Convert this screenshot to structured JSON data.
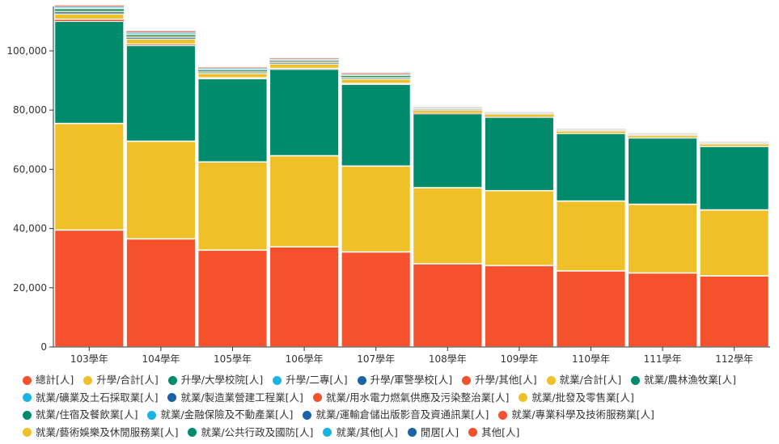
{
  "chart_data": {
    "type": "bar",
    "stacked": true,
    "categories": [
      "103學年",
      "104學年",
      "105學年",
      "106學年",
      "107學年",
      "108學年",
      "109學年",
      "110學年",
      "111學年",
      "112學年"
    ],
    "ylim": [
      0,
      115000
    ],
    "yticks": [
      "0",
      "20,000",
      "40,000",
      "60,000",
      "80,000",
      "100,000"
    ],
    "ytick_values": [
      0,
      20000,
      40000,
      60000,
      80000,
      100000
    ],
    "grid": false,
    "legend_position": "bottom",
    "series": [
      {
        "name": "總計[人]",
        "color": "#f4512c",
        "values": [
          39500,
          36500,
          32700,
          33800,
          32100,
          28100,
          27500,
          25700,
          25000,
          24000
        ]
      },
      {
        "name": "升學/合計[人]",
        "color": "#efc028",
        "values": [
          36000,
          33000,
          29800,
          30800,
          29000,
          25700,
          25300,
          23600,
          23200,
          22300
        ]
      },
      {
        "name": "升學/大學校院[人]",
        "color": "#008c6c",
        "values": [
          34500,
          32300,
          28100,
          29200,
          27600,
          25000,
          24800,
          22800,
          22400,
          21400
        ]
      },
      {
        "name": "升學/二專[人]",
        "color": "#1bb3e3",
        "values": [
          0,
          0,
          0,
          0,
          0,
          0,
          0,
          0,
          0,
          0
        ]
      },
      {
        "name": "升學/軍警學校[人]",
        "color": "#1b63a8",
        "values": [
          0,
          0,
          0,
          0,
          0,
          0,
          0,
          0,
          0,
          0
        ]
      },
      {
        "name": "升學/其他[人]",
        "color": "#f4512c",
        "values": [
          700,
          500,
          300,
          300,
          300,
          200,
          150,
          100,
          100,
          100
        ]
      },
      {
        "name": "就業/合計[人]",
        "color": "#efc028",
        "values": [
          1800,
          1700,
          1500,
          1500,
          1500,
          800,
          800,
          650,
          600,
          650
        ]
      },
      {
        "name": "就業/農林漁牧業[人]",
        "color": "#008c6c",
        "values": [
          100,
          100,
          100,
          100,
          100,
          50,
          50,
          50,
          50,
          50
        ]
      },
      {
        "name": "就業/礦業及土石採取業[人]",
        "color": "#1bb3e3",
        "values": [
          0,
          0,
          0,
          0,
          0,
          0,
          0,
          0,
          0,
          0
        ]
      },
      {
        "name": "就業/製造業營建工程業[人]",
        "color": "#1b63a8",
        "values": [
          500,
          400,
          300,
          300,
          300,
          150,
          100,
          100,
          100,
          100
        ]
      },
      {
        "name": "就業/用水電力燃氣供應及污染整治業[人]",
        "color": "#f4512c",
        "values": [
          100,
          100,
          50,
          50,
          50,
          50,
          50,
          50,
          50,
          50
        ]
      },
      {
        "name": "就業/批發及零售業[人]",
        "color": "#efc028",
        "values": [
          300,
          300,
          250,
          250,
          250,
          150,
          100,
          100,
          100,
          100
        ]
      },
      {
        "name": "就業/住宿及餐飲業[人]",
        "color": "#008c6c",
        "values": [
          600,
          500,
          400,
          400,
          400,
          200,
          150,
          150,
          100,
          100
        ]
      },
      {
        "name": "就業/金融保險及不動產業[人]",
        "color": "#1bb3e3",
        "values": [
          100,
          100,
          50,
          50,
          50,
          50,
          50,
          50,
          50,
          50
        ]
      },
      {
        "name": "就業/運輸倉儲出版影音及資通訊業[人]",
        "color": "#1b63a8",
        "values": [
          100,
          100,
          50,
          50,
          50,
          50,
          50,
          50,
          50,
          50
        ]
      },
      {
        "name": "就業/專業科學及技術服務業[人]",
        "color": "#f4512c",
        "values": [
          100,
          100,
          50,
          50,
          50,
          50,
          50,
          50,
          50,
          50
        ]
      },
      {
        "name": "就業/藝術娛樂及休閒服務業[人]",
        "color": "#efc028",
        "values": [
          100,
          100,
          50,
          50,
          50,
          50,
          50,
          50,
          50,
          50
        ]
      },
      {
        "name": "就業/公共行政及國防[人]",
        "color": "#008c6c",
        "values": [
          200,
          200,
          150,
          150,
          150,
          100,
          50,
          50,
          50,
          50
        ]
      },
      {
        "name": "就業/其他[人]",
        "color": "#1bb3e3",
        "values": [
          200,
          200,
          150,
          150,
          150,
          100,
          50,
          50,
          50,
          50
        ]
      },
      {
        "name": "閒居[人]",
        "color": "#1b63a8",
        "values": [
          200,
          200,
          150,
          150,
          150,
          100,
          50,
          50,
          50,
          50
        ]
      },
      {
        "name": "其他[人]",
        "color": "#f4512c",
        "values": [
          300,
          300,
          250,
          250,
          250,
          150,
          100,
          100,
          100,
          100
        ]
      }
    ]
  }
}
